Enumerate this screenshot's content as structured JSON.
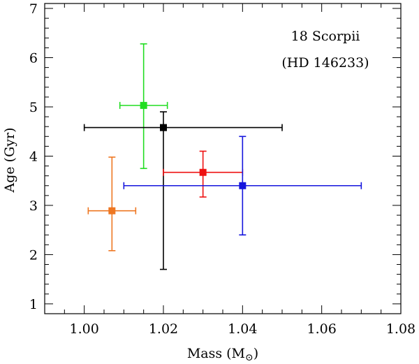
{
  "chart_data": {
    "type": "scatter",
    "title": "",
    "annotation_line1": "18 Scorpii",
    "annotation_line2": "(HD 146233)",
    "xlabel": "Mass (M",
    "xlabel_sub": "⊙",
    "xlabel_close": ")",
    "ylabel": "Age (Gyr)",
    "xlim": [
      0.99,
      1.08
    ],
    "ylim": [
      0.8,
      7.1
    ],
    "xticks": [
      1.0,
      1.02,
      1.04,
      1.06,
      1.08
    ],
    "xtick_labels": [
      "1.00",
      "1.02",
      "1.04",
      "1.06",
      "1.08"
    ],
    "yticks": [
      1,
      2,
      3,
      4,
      5,
      6,
      7
    ],
    "ytick_labels": [
      "1",
      "2",
      "3",
      "4",
      "5",
      "6",
      "7"
    ],
    "grid": false,
    "points": [
      {
        "name": "green",
        "color": "#22dd22",
        "x": 1.015,
        "y": 5.03,
        "xerr_low": 1.009,
        "xerr_high": 1.021,
        "yerr_low": 3.75,
        "yerr_high": 6.28
      },
      {
        "name": "black",
        "color": "#000000",
        "x": 1.02,
        "y": 4.58,
        "xerr_low": 1.0,
        "xerr_high": 1.05,
        "yerr_low": 1.7,
        "yerr_high": 4.9
      },
      {
        "name": "red",
        "color": "#ee1111",
        "x": 1.03,
        "y": 3.67,
        "xerr_low": 1.02,
        "xerr_high": 1.04,
        "yerr_low": 3.17,
        "yerr_high": 4.1
      },
      {
        "name": "blue",
        "color": "#1515dd",
        "x": 1.04,
        "y": 3.4,
        "xerr_low": 1.01,
        "xerr_high": 1.07,
        "yerr_low": 2.4,
        "yerr_high": 4.4
      },
      {
        "name": "orange",
        "color": "#ee7722",
        "x": 1.007,
        "y": 2.89,
        "xerr_low": 1.001,
        "xerr_high": 1.013,
        "yerr_low": 2.08,
        "yerr_high": 3.98
      }
    ]
  }
}
